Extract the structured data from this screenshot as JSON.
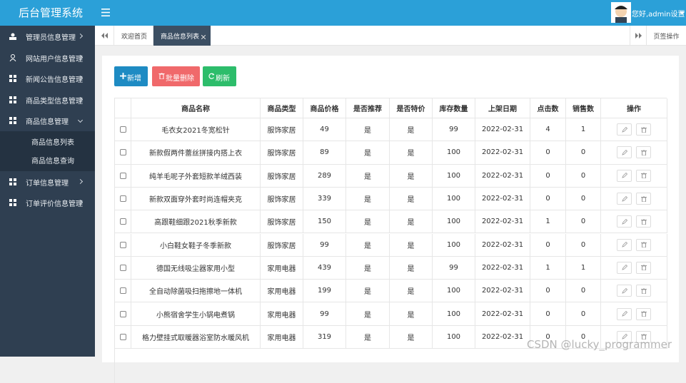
{
  "header": {
    "title": "后台管理系统",
    "user": "您好,admin设置"
  },
  "sidebar": {
    "menu": [
      {
        "label": "管理员信息管理"
      },
      {
        "label": "网站用户信息管理"
      },
      {
        "label": "新闻公告信息管理"
      },
      {
        "label": "商品类型信息管理"
      },
      {
        "label": "商品信息管理",
        "children": [
          "商品信息列表",
          "商品信息查询"
        ]
      },
      {
        "label": "订单信息管理"
      },
      {
        "label": "订单评价信息管理"
      }
    ]
  },
  "tabs": {
    "items": [
      "欢迎首页",
      "商品信息列表"
    ],
    "action": "页签操作"
  },
  "toolbar": {
    "buttons": [
      "新增",
      "批量删除",
      "刷新"
    ]
  },
  "table": {
    "columns": [
      "商品名称",
      "商品类型",
      "商品价格",
      "是否推荐",
      "是否特价",
      "库存数量",
      "上架日期",
      "点击数",
      "销售数",
      "操作"
    ],
    "rows": [
      [
        "毛衣女2021冬宽松针",
        "服饰家居",
        49,
        "是",
        "是",
        99,
        "2022-02-31",
        4,
        1
      ],
      [
        "新款假两件蕾丝拼接内搭上衣",
        "服饰家居",
        89,
        "是",
        "是",
        100,
        "2022-02-31",
        0,
        0
      ],
      [
        "纯羊毛呢子外套短款羊绒西装",
        "服饰家居",
        289,
        "是",
        "是",
        100,
        "2022-02-31",
        0,
        0
      ],
      [
        "新款双面穿外套时尚连帽夹克",
        "服饰家居",
        339,
        "是",
        "是",
        100,
        "2022-02-31",
        0,
        0
      ],
      [
        "高跟鞋细跟2021秋季新款",
        "服饰家居",
        150,
        "是",
        "是",
        100,
        "2022-02-31",
        1,
        0
      ],
      [
        "小白鞋女鞋子冬季新款",
        "服饰家居",
        99,
        "是",
        "是",
        100,
        "2022-02-31",
        0,
        0
      ],
      [
        "德国无线吸尘器家用小型",
        "家用电器",
        439,
        "是",
        "是",
        99,
        "2022-02-31",
        1,
        1
      ],
      [
        "全自动除菌吸扫拖擦地一体机",
        "家用电器",
        199,
        "是",
        "是",
        100,
        "2022-02-31",
        0,
        0
      ],
      [
        "小熊宿舍学生小锅电煮锅",
        "家用电器",
        99,
        "是",
        "是",
        100,
        "2022-02-31",
        0,
        0
      ],
      [
        "格力壁挂式取暖器浴室防水暖风机",
        "家用电器",
        319,
        "是",
        "是",
        100,
        "2022-02-31",
        0,
        0
      ]
    ]
  },
  "watermark": "CSDN @lucky_programmer"
}
